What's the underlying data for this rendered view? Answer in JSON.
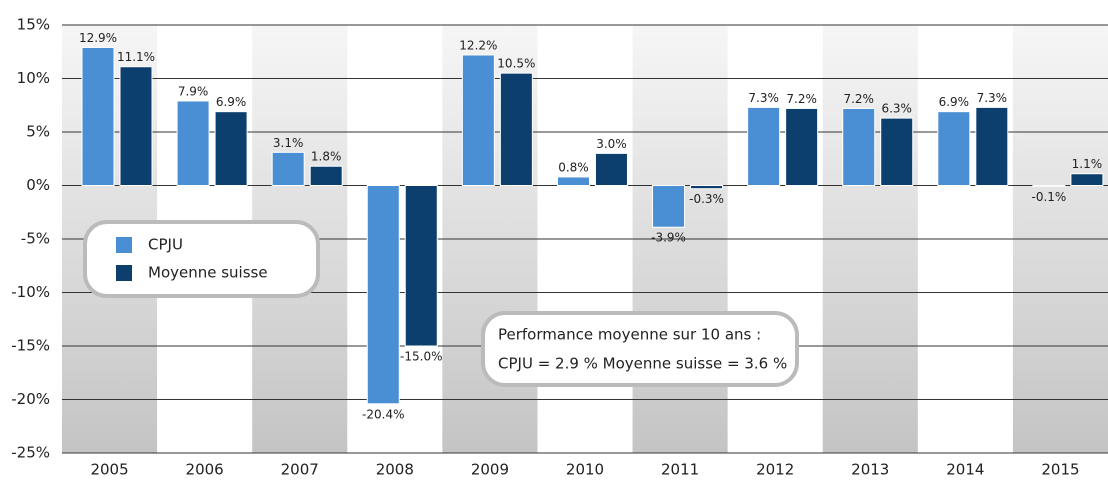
{
  "chart_data": {
    "type": "bar",
    "categories": [
      "2005",
      "2006",
      "2007",
      "2008",
      "2009",
      "2010",
      "2011",
      "2012",
      "2013",
      "2014",
      "2015"
    ],
    "series": [
      {
        "name": "CPJU",
        "color": "#4a8fd4",
        "values": [
          12.9,
          7.9,
          3.1,
          -20.4,
          12.2,
          0.8,
          -3.9,
          7.3,
          7.2,
          6.9,
          -0.1
        ],
        "value_labels": [
          "12.9%",
          "7.9%",
          "3.1%",
          "-20.4%",
          "12.2%",
          "0.8%",
          "-3.9%",
          "7.3%",
          "7.2%",
          "6.9%",
          "-0.1%"
        ]
      },
      {
        "name": "Moyenne suisse",
        "color": "#0c3f6e",
        "values": [
          11.1,
          6.9,
          1.8,
          -15.0,
          10.5,
          3.0,
          -0.3,
          7.2,
          6.3,
          7.3,
          1.1
        ],
        "value_labels": [
          "11.1%",
          "6.9%",
          "1.8%",
          "-15.0%",
          "10.5%",
          "3.0%",
          "-0.3%",
          "7.2%",
          "6.3%",
          "7.3%",
          "1.1%"
        ]
      }
    ],
    "ylim": [
      -25,
      15
    ],
    "yticks": [
      {
        "value": -25,
        "label": "-25%"
      },
      {
        "value": -20,
        "label": "-20%"
      },
      {
        "value": -15,
        "label": "-15%"
      },
      {
        "value": -10,
        "label": "-10%"
      },
      {
        "value": -5,
        "label": "-5%"
      },
      {
        "value": 0,
        "label": "0%"
      },
      {
        "value": 5,
        "label": "5%"
      },
      {
        "value": 10,
        "label": "10%"
      },
      {
        "value": 15,
        "label": "15%"
      }
    ],
    "grid": true,
    "annotations": [
      "Performance moyenne sur 10 ans :",
      "CPJU = 2.9 % Moyenne suisse = 3.6 %"
    ]
  }
}
